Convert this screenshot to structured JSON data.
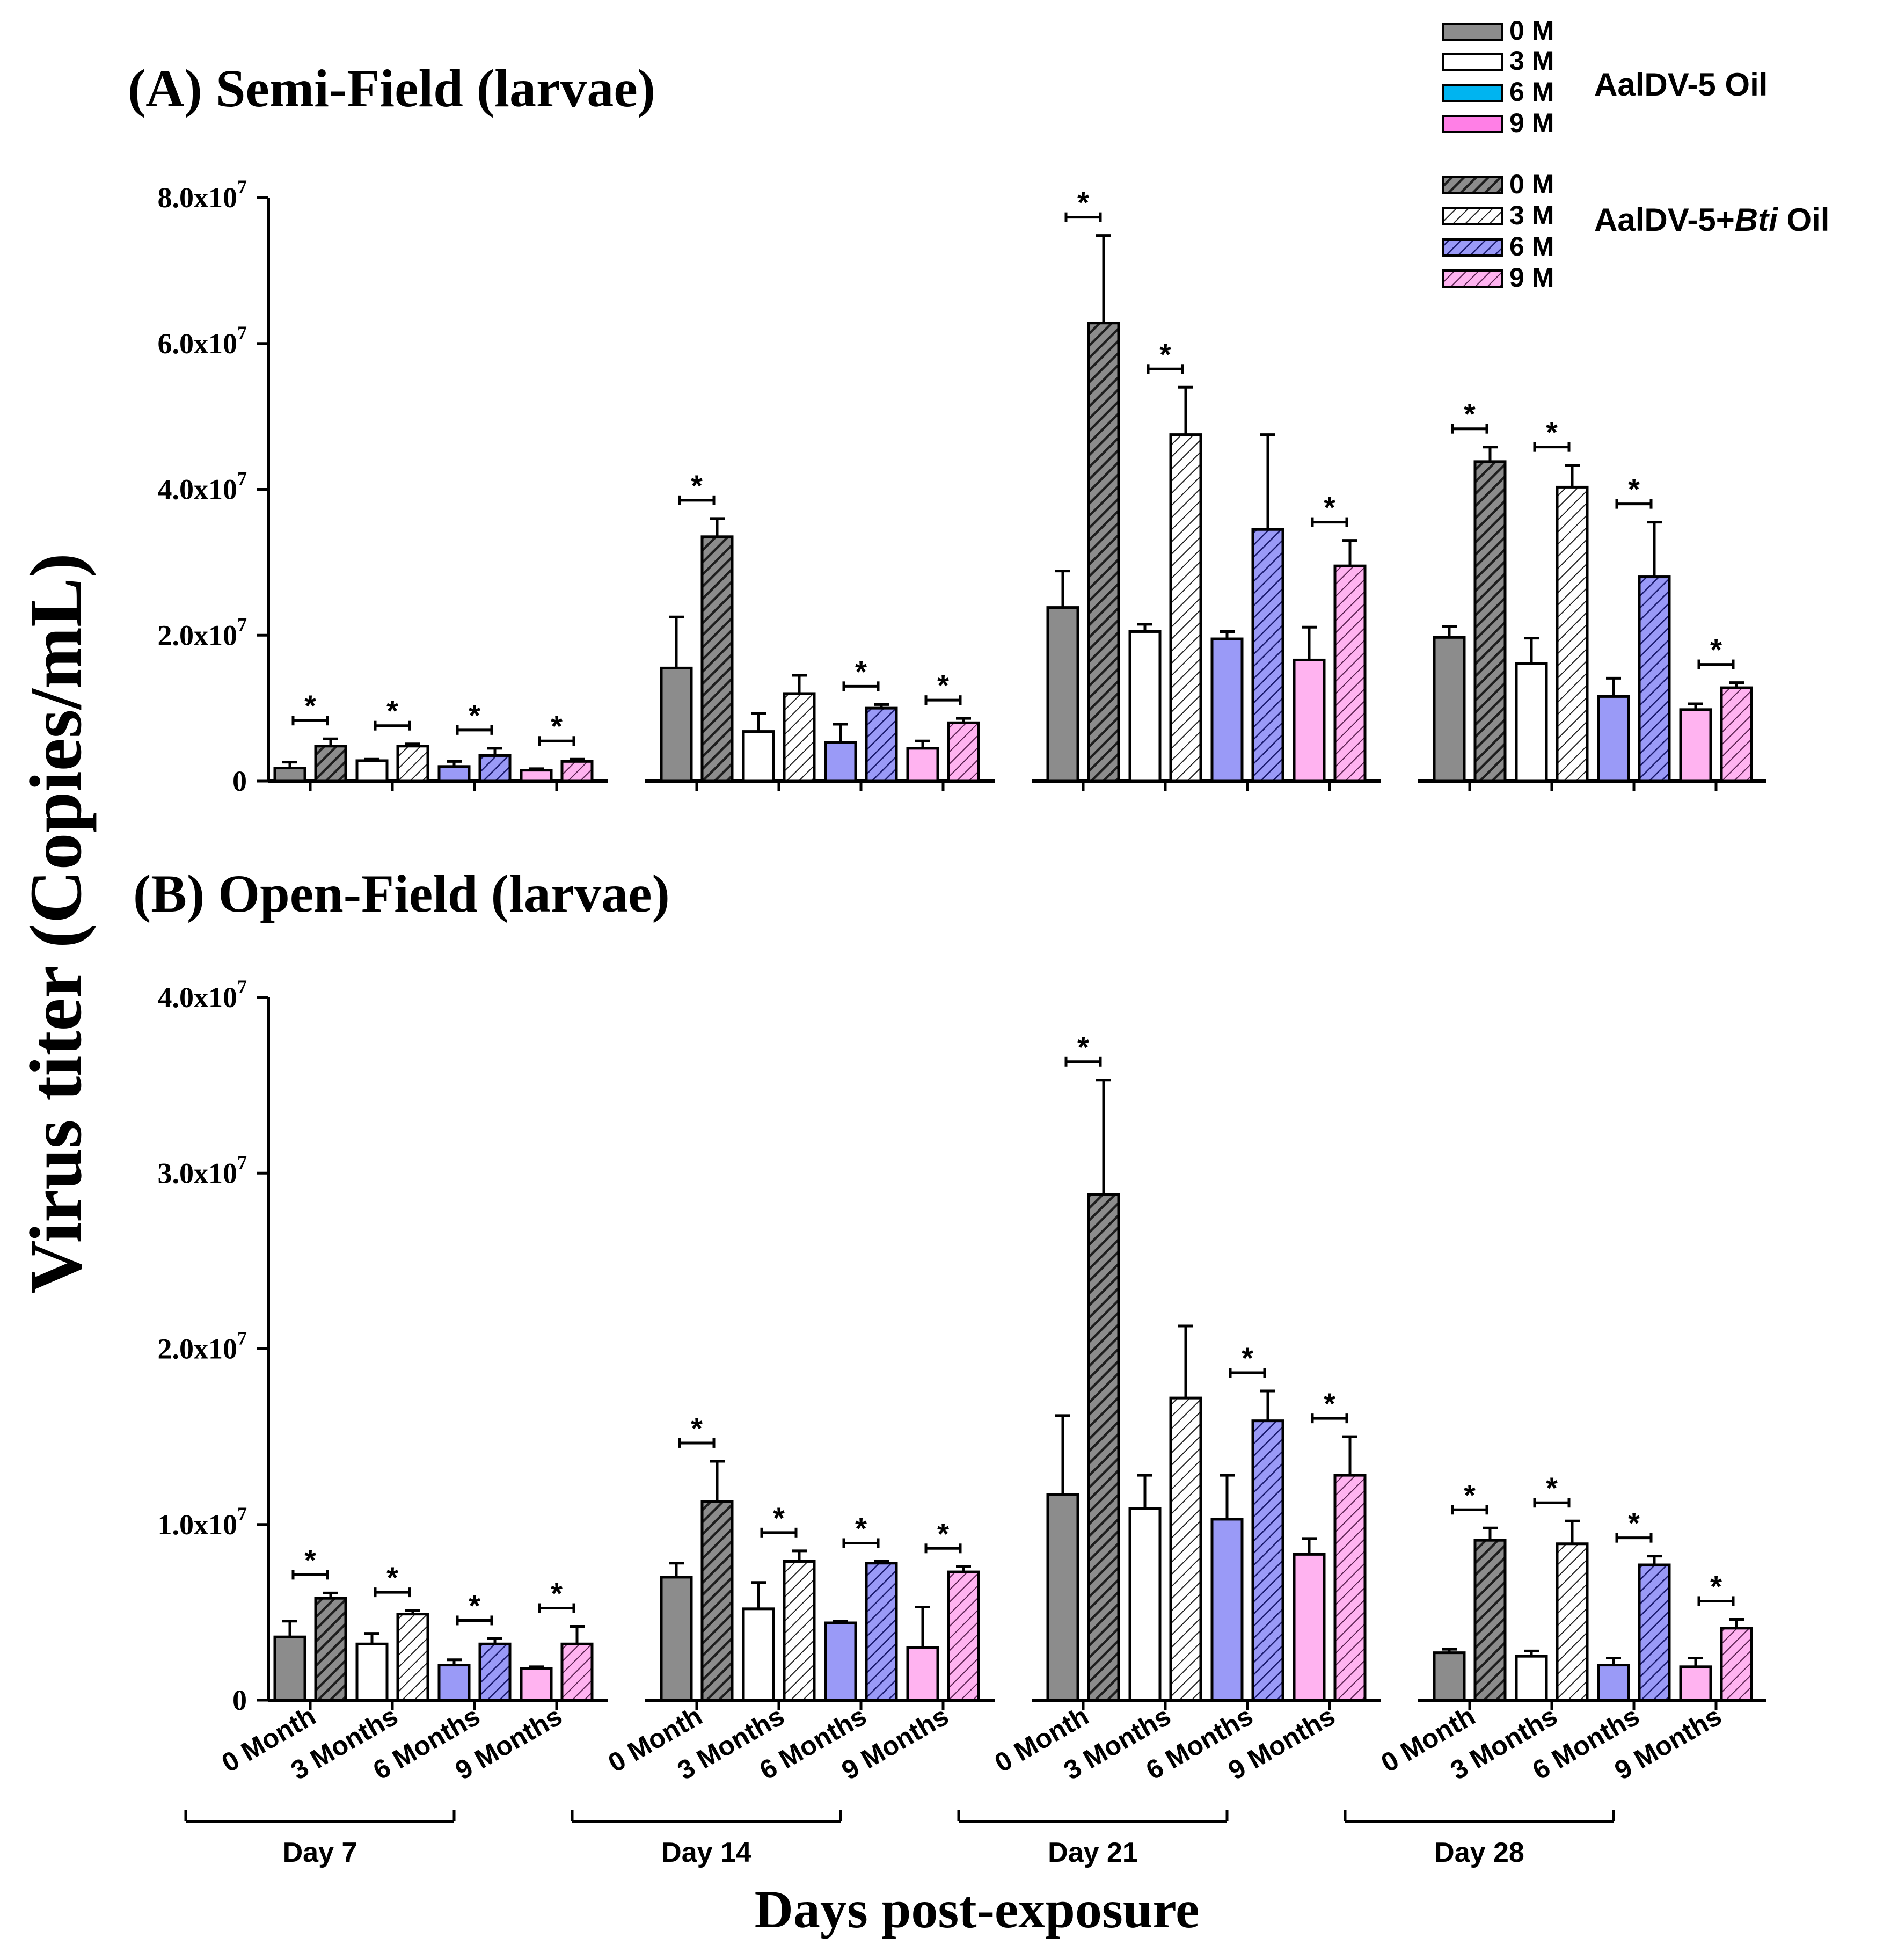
{
  "figure": {
    "y_axis_label": "Virus titer (Copies/mL)",
    "x_axis_label": "Days post-exposure",
    "legend": {
      "group_a_label": "AalDV-5 Oil",
      "group_b_label_prefix": "AalDV-5+",
      "group_b_label_italic": "Bti",
      "group_b_label_suffix": " Oil",
      "entries": [
        "0 M",
        "3 M",
        "6 M",
        "9 M"
      ]
    },
    "colors": {
      "0M": "#8c8c8c",
      "3M": "#ffffff",
      "6M": "#9a9af7",
      "6M_legend_plain": "#00b4f0",
      "9M": "#ffb3f0",
      "9M_legend_plain": "#ff7fe6",
      "axis": "#000000"
    }
  },
  "chart_data": [
    {
      "type": "bar",
      "panel": "A",
      "title": "(A) Semi-Field (larvae)",
      "xlabel": "Days post-exposure",
      "ylabel": "Virus titer (Copies/mL)",
      "ylim": [
        0,
        80000000
      ],
      "y_ticks": [
        {
          "value": 0,
          "label": "0"
        },
        {
          "value": 20000000,
          "label": "2.0x10",
          "exp": "7"
        },
        {
          "value": 40000000,
          "label": "4.0x10",
          "exp": "7"
        },
        {
          "value": 60000000,
          "label": "6.0x10",
          "exp": "7"
        },
        {
          "value": 80000000,
          "label": "8.0x10",
          "exp": "7"
        }
      ],
      "day_groups": [
        "Day 7",
        "Day 14",
        "Day 21",
        "Day 28"
      ],
      "month_categories": [
        "0 Month",
        "3 Months",
        "6 Months",
        "9 Months"
      ],
      "series": [
        {
          "name": "AalDV-5 Oil",
          "values": [
            [
              1800000,
              2800000,
              2000000,
              1500000
            ],
            [
              15500000,
              6800000,
              5300000,
              4500000
            ],
            [
              23800000,
              20500000,
              19500000,
              16600000
            ],
            [
              19700000,
              16100000,
              11600000,
              9800000
            ]
          ],
          "errors": [
            [
              800000,
              200000,
              700000,
              200000
            ],
            [
              7000000,
              2500000,
              2500000,
              1000000
            ],
            [
              5000000,
              1000000,
              1000000,
              4500000
            ],
            [
              1500000,
              3500000,
              2500000,
              800000
            ]
          ]
        },
        {
          "name": "AalDV-5+Bti Oil",
          "values": [
            [
              4800000,
              4800000,
              3500000,
              2700000
            ],
            [
              33500000,
              12000000,
              10000000,
              8000000
            ],
            [
              62800000,
              47500000,
              34500000,
              29500000
            ],
            [
              43800000,
              40300000,
              28000000,
              12800000
            ]
          ],
          "errors": [
            [
              1000000,
              300000,
              1000000,
              300000
            ],
            [
              2500000,
              2500000,
              500000,
              600000
            ],
            [
              12000000,
              6500000,
              13000000,
              3500000
            ],
            [
              2000000,
              3000000,
              7500000,
              700000
            ]
          ]
        }
      ],
      "significance": [
        [
          true,
          true,
          true,
          true
        ],
        [
          true,
          false,
          true,
          true
        ],
        [
          true,
          true,
          false,
          true
        ],
        [
          true,
          true,
          true,
          true
        ]
      ]
    },
    {
      "type": "bar",
      "panel": "B",
      "title": "(B) Open-Field (larvae)",
      "xlabel": "Days post-exposure",
      "ylabel": "Virus titer (Copies/mL)",
      "ylim": [
        0,
        40000000
      ],
      "y_ticks": [
        {
          "value": 0,
          "label": "0"
        },
        {
          "value": 10000000,
          "label": "1.0x10",
          "exp": "7"
        },
        {
          "value": 20000000,
          "label": "2.0x10",
          "exp": "7"
        },
        {
          "value": 30000000,
          "label": "3.0x10",
          "exp": "7"
        },
        {
          "value": 40000000,
          "label": "4.0x10",
          "exp": "7"
        }
      ],
      "day_groups": [
        "Day 7",
        "Day 14",
        "Day 21",
        "Day 28"
      ],
      "month_categories": [
        "0 Month",
        "3 Months",
        "6 Months",
        "9 Months"
      ],
      "series": [
        {
          "name": "AalDV-5 Oil",
          "values": [
            [
              3600000,
              3200000,
              2000000,
              1800000
            ],
            [
              7000000,
              5200000,
              4400000,
              3000000
            ],
            [
              11700000,
              10900000,
              10300000,
              8300000
            ],
            [
              2700000,
              2500000,
              2000000,
              1900000
            ]
          ],
          "errors": [
            [
              900000,
              600000,
              300000,
              100000
            ],
            [
              800000,
              1500000,
              100000,
              2300000
            ],
            [
              4500000,
              1900000,
              2500000,
              900000
            ],
            [
              200000,
              300000,
              400000,
              500000
            ]
          ]
        },
        {
          "name": "AalDV-5+Bti Oil",
          "values": [
            [
              5800000,
              4900000,
              3200000,
              3200000
            ],
            [
              11300000,
              7900000,
              7800000,
              7300000
            ],
            [
              28800000,
              17200000,
              15900000,
              12800000
            ],
            [
              9100000,
              8900000,
              7700000,
              4100000
            ]
          ],
          "errors": [
            [
              300000,
              200000,
              300000,
              1000000
            ],
            [
              2300000,
              600000,
              100000,
              300000
            ],
            [
              6500000,
              4100000,
              1700000,
              2200000
            ],
            [
              700000,
              1300000,
              500000,
              500000
            ]
          ]
        }
      ],
      "significance": [
        [
          true,
          true,
          true,
          true
        ],
        [
          true,
          true,
          true,
          true
        ],
        [
          true,
          false,
          true,
          true
        ],
        [
          true,
          true,
          true,
          true
        ]
      ]
    }
  ]
}
